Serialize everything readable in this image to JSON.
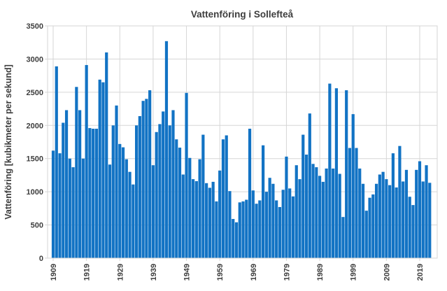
{
  "window": {
    "background": "#ffffff"
  },
  "chart_data": {
    "type": "bar",
    "title": "Vattenföring i Sollefteå",
    "xlabel": "",
    "ylabel": "Vattenföring [kubikmeter per sekund]",
    "ylim": [
      0,
      3500
    ],
    "y_ticks": [
      0,
      500,
      1000,
      1500,
      2000,
      2500,
      3000,
      3500
    ],
    "x_tick_labels": [
      "1909",
      "1919",
      "1929",
      "1939",
      "1949",
      "1959",
      "1969",
      "1979",
      "1989",
      "1999",
      "2009",
      "2019"
    ],
    "x_start_year": 1909,
    "x_end_year": 2022,
    "grid": true,
    "legend": "none",
    "bar_color": "#1273c4",
    "grid_color": "#d6d6d6",
    "text_color": "#3d3d3d",
    "values": [
      1620,
      2890,
      1580,
      2040,
      2230,
      1500,
      1370,
      2580,
      2230,
      1500,
      2910,
      1960,
      1950,
      1950,
      2690,
      2650,
      3100,
      1410,
      2000,
      2300,
      1720,
      1670,
      1490,
      1300,
      1110,
      2000,
      2140,
      2370,
      2400,
      2530,
      1400,
      1900,
      2020,
      2210,
      3270,
      2000,
      2230,
      1790,
      1665,
      1260,
      2490,
      1510,
      1190,
      1160,
      1490,
      1860,
      1130,
      1060,
      1150,
      855,
      1320,
      1790,
      1850,
      1010,
      590,
      540,
      840,
      855,
      880,
      1950,
      1020,
      820,
      870,
      1700,
      1000,
      1210,
      1120,
      870,
      770,
      1030,
      1530,
      1050,
      930,
      1400,
      1190,
      1860,
      1560,
      2180,
      1420,
      1370,
      1240,
      1150,
      1350,
      2630,
      1350,
      2560,
      1270,
      620,
      2530,
      1660,
      2170,
      1660,
      1350,
      1120,
      715,
      910,
      960,
      1120,
      1260,
      1300,
      1190,
      1100,
      1580,
      1065,
      1690,
      1155,
      1330,
      925,
      800,
      1330,
      1460,
      1155,
      1400,
      1135
    ]
  }
}
